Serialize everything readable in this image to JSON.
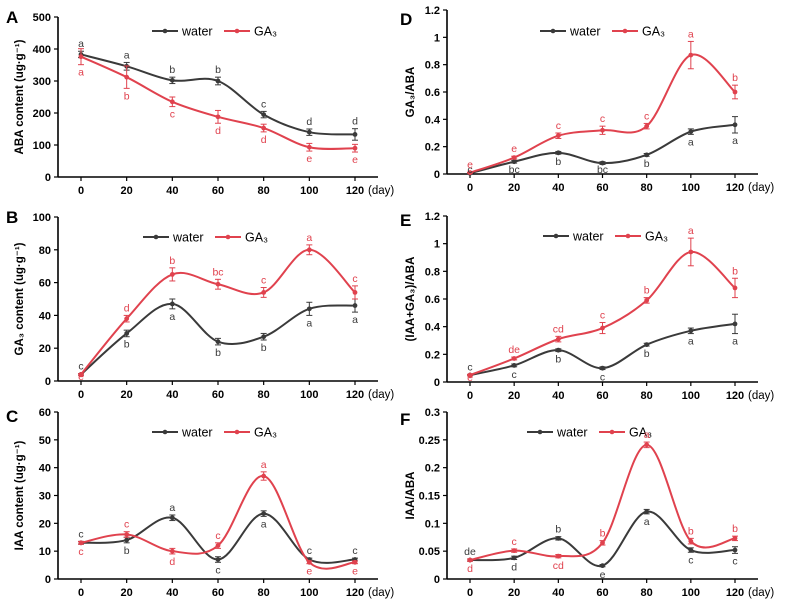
{
  "colors": {
    "water": "#3a3a3a",
    "ga3": "#e0424e",
    "axis": "#000000"
  },
  "chart_data": [
    {
      "id": "A",
      "type": "line",
      "panel_label": "A",
      "ylabel": "ABA content (ug·g⁻¹)",
      "xunit": "(day)",
      "ylim": [
        0,
        500
      ],
      "yticks": [
        0,
        100,
        200,
        300,
        400,
        500
      ],
      "x": [
        0,
        20,
        40,
        60,
        80,
        100,
        120
      ],
      "xticklabels": [
        "0",
        "20",
        "40",
        "60",
        "80",
        "100",
        "120"
      ],
      "legend": [
        "water",
        "GA₃"
      ],
      "series": [
        {
          "name": "water",
          "values": [
            383,
            346,
            302,
            300,
            195,
            140,
            133
          ],
          "errors": [
            10,
            12,
            10,
            12,
            10,
            10,
            18
          ],
          "letters": [
            "a",
            "a",
            "b",
            "b",
            "c",
            "d",
            "d"
          ]
        },
        {
          "name": "GA₃",
          "values": [
            376,
            312,
            235,
            188,
            153,
            93,
            90
          ],
          "errors": [
            25,
            35,
            15,
            20,
            12,
            12,
            12
          ],
          "letters": [
            "a",
            "b",
            "c",
            "d",
            "d",
            "e",
            "e"
          ]
        }
      ]
    },
    {
      "id": "B",
      "type": "line",
      "panel_label": "B",
      "ylabel": "GA₃ content (ug·g⁻¹)",
      "xunit": "(day)",
      "ylim": [
        0,
        100
      ],
      "yticks": [
        0,
        20,
        40,
        60,
        80,
        100
      ],
      "x": [
        0,
        20,
        40,
        60,
        80,
        100,
        120
      ],
      "xticklabels": [
        "0",
        "20",
        "40",
        "60",
        "80",
        "100",
        "120"
      ],
      "legend": [
        "water",
        "GA₃"
      ],
      "series": [
        {
          "name": "water",
          "values": [
            4,
            29,
            47,
            24,
            27,
            44,
            46
          ],
          "errors": [
            0.5,
            2,
            3,
            2,
            2,
            4,
            4
          ],
          "letters": [
            "c",
            "b",
            "a",
            "b",
            "b",
            "a",
            "a"
          ]
        },
        {
          "name": "GA₃",
          "values": [
            4,
            38,
            65,
            59,
            54,
            80,
            54
          ],
          "errors": [
            0.5,
            2,
            4,
            3,
            3,
            3,
            4
          ],
          "letters": [
            "e",
            "d",
            "b",
            "bc",
            "c",
            "a",
            "c"
          ]
        }
      ]
    },
    {
      "id": "C",
      "type": "line",
      "panel_label": "C",
      "ylabel": "IAA content (ug·g⁻¹)",
      "xunit": "(day)",
      "ylim": [
        0,
        60
      ],
      "yticks": [
        0,
        10,
        20,
        30,
        40,
        50,
        60
      ],
      "x": [
        0,
        20,
        40,
        60,
        80,
        100,
        120
      ],
      "xticklabels": [
        "0",
        "20",
        "40",
        "60",
        "80",
        "100",
        "120"
      ],
      "legend": [
        "water",
        "GA₃"
      ],
      "series": [
        {
          "name": "water",
          "values": [
            13,
            14,
            22,
            7,
            23.5,
            7,
            7
          ],
          "errors": [
            0.5,
            1,
            1,
            1,
            1,
            0.5,
            0.5
          ],
          "letters": [
            "c",
            "b",
            "a",
            "c",
            "a",
            "c",
            "c"
          ]
        },
        {
          "name": "GA₃",
          "values": [
            13,
            16,
            10,
            12,
            37,
            6,
            6
          ],
          "errors": [
            0.5,
            1,
            1,
            1,
            1.5,
            0.5,
            0.5
          ],
          "letters": [
            "c",
            "c",
            "d",
            "c",
            "a",
            "e",
            "e"
          ]
        }
      ]
    },
    {
      "id": "D",
      "type": "line",
      "panel_label": "D",
      "ylabel": "GA₃/ABA",
      "xunit": "(day)",
      "ylim": [
        0,
        1.2
      ],
      "yticks": [
        0,
        0.2,
        0.4,
        0.6,
        0.8,
        1,
        1.2
      ],
      "x": [
        0,
        20,
        40,
        60,
        80,
        100,
        120
      ],
      "xticklabels": [
        "0",
        "20",
        "40",
        "60",
        "80",
        "100",
        "120"
      ],
      "legend": [
        "water",
        "GA₃"
      ],
      "series": [
        {
          "name": "water",
          "values": [
            0.005,
            0.09,
            0.155,
            0.08,
            0.14,
            0.31,
            0.36
          ],
          "errors": [
            0.003,
            0.01,
            0.01,
            0.01,
            0.01,
            0.02,
            0.06
          ],
          "letters": [
            "c",
            "bc",
            "b",
            "bc",
            "b",
            "a",
            "a"
          ]
        },
        {
          "name": "GA₃",
          "values": [
            0.01,
            0.12,
            0.28,
            0.32,
            0.35,
            0.87,
            0.6
          ],
          "errors": [
            0.003,
            0.01,
            0.02,
            0.03,
            0.02,
            0.1,
            0.05
          ],
          "letters": [
            "e",
            "e",
            "c",
            "c",
            "c",
            "a",
            "b"
          ]
        }
      ]
    },
    {
      "id": "E",
      "type": "line",
      "panel_label": "E",
      "ylabel": "(IAA+GA₃)/ABA",
      "xunit": "(day)",
      "ylim": [
        0,
        1.2
      ],
      "yticks": [
        0,
        0.2,
        0.4,
        0.6,
        0.8,
        1,
        1.2
      ],
      "x": [
        0,
        20,
        40,
        60,
        80,
        100,
        120
      ],
      "xticklabels": [
        "0",
        "20",
        "40",
        "60",
        "80",
        "100",
        "120"
      ],
      "legend": [
        "water",
        "GA₃"
      ],
      "series": [
        {
          "name": "water",
          "values": [
            0.05,
            0.12,
            0.23,
            0.1,
            0.27,
            0.37,
            0.42
          ],
          "errors": [
            0.005,
            0.01,
            0.01,
            0.01,
            0.01,
            0.02,
            0.07
          ],
          "letters": [
            "c",
            "c",
            "b",
            "c",
            "b",
            "a",
            "a"
          ]
        },
        {
          "name": "GA₃",
          "values": [
            0.05,
            0.17,
            0.31,
            0.39,
            0.59,
            0.94,
            0.68
          ],
          "errors": [
            0.005,
            0.01,
            0.02,
            0.04,
            0.02,
            0.1,
            0.07
          ],
          "letters": [
            "e",
            "de",
            "cd",
            "c",
            "b",
            "a",
            "b"
          ]
        }
      ]
    },
    {
      "id": "F",
      "type": "line",
      "panel_label": "F",
      "ylabel": "IAA/ABA",
      "xunit": "(day)",
      "ylim": [
        0,
        0.3
      ],
      "yticks": [
        0,
        0.05,
        0.1,
        0.15,
        0.2,
        0.25,
        0.3
      ],
      "x": [
        0,
        20,
        40,
        60,
        80,
        100,
        120
      ],
      "xticklabels": [
        "0",
        "20",
        "40",
        "60",
        "80",
        "100",
        "120"
      ],
      "legend": [
        "water",
        "GA₃"
      ],
      "series": [
        {
          "name": "water",
          "values": [
            0.034,
            0.038,
            0.073,
            0.024,
            0.121,
            0.052,
            0.052
          ],
          "errors": [
            0.002,
            0.003,
            0.003,
            0.002,
            0.004,
            0.004,
            0.006
          ],
          "letters": [
            "de",
            "d",
            "b",
            "e",
            "a",
            "c",
            "c"
          ]
        },
        {
          "name": "GA₃",
          "values": [
            0.034,
            0.051,
            0.041,
            0.065,
            0.241,
            0.068,
            0.073
          ],
          "errors": [
            0.002,
            0.003,
            0.003,
            0.004,
            0.005,
            0.005,
            0.004
          ],
          "letters": [
            "d",
            "c",
            "cd",
            "b",
            "a",
            "b",
            "b"
          ]
        }
      ]
    }
  ]
}
